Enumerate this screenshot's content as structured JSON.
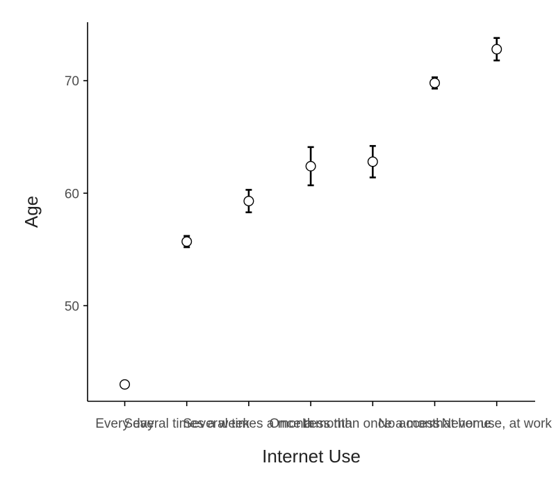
{
  "chart_data": {
    "type": "scatter",
    "title": "",
    "xlabel": "Internet Use",
    "ylabel": "Age",
    "categories": [
      "Every day",
      "Several times a week",
      "Several times a month",
      "Once a month",
      "Less than once a month",
      "No access at home",
      "Never use, at work"
    ],
    "series": [
      {
        "values": [
          43.0,
          55.7,
          59.3,
          62.4,
          62.8,
          69.8,
          72.8
        ],
        "lower": [
          43.0,
          55.2,
          58.3,
          60.7,
          61.4,
          69.3,
          71.8
        ],
        "upper": [
          43.0,
          56.2,
          60.3,
          64.1,
          64.2,
          70.3,
          73.8
        ]
      }
    ],
    "yticks": [
      50,
      60,
      70
    ],
    "ylim": [
      41.5,
      75.2
    ],
    "grid": false,
    "legend": "none"
  }
}
